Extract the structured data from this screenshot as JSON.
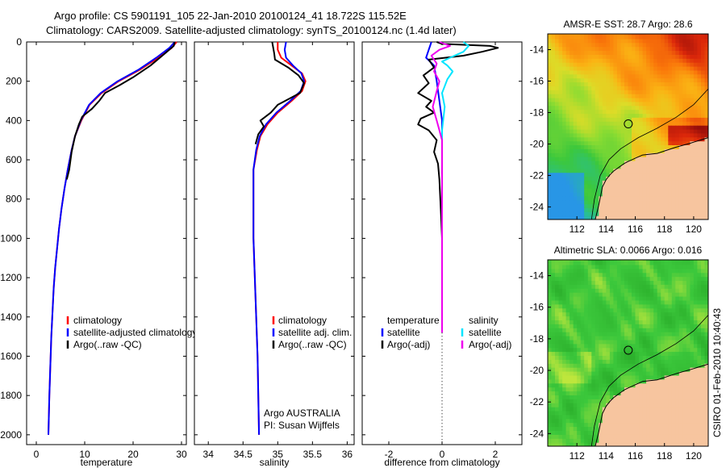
{
  "header": {
    "line1": "Argo profile: CS 5901191_105 22-Jan-2010 20100124_41 18.722S 115.52E",
    "line2": "Climatology: CARS2009. Satellite-adjusted climatology: synTS_20100124.nc (1.4d later)"
  },
  "side_stamp": "CSIRO 01-Feb-2010 10:40:43",
  "colors": {
    "climatology": "#ff0000",
    "satellite": "#0000ff",
    "argo": "#000000",
    "sal_satellite": "#00e5ff",
    "sal_argo": "#ee00ee",
    "land": "#f7c59f"
  },
  "chart_data": [
    {
      "id": "temperature",
      "type": "line",
      "xlabel": "temperature",
      "ylabel": "",
      "xlim": [
        -2,
        31
      ],
      "ylim": [
        2050,
        0
      ],
      "xticks": [
        0,
        10,
        20,
        30
      ],
      "yticks": [
        0,
        200,
        400,
        600,
        800,
        1000,
        1200,
        1400,
        1600,
        1800,
        2000
      ],
      "legend": {
        "placement": "lower-right",
        "entries": [
          {
            "label": "climatology",
            "color": "#ff0000"
          },
          {
            "label": "satellite-adjusted climatology",
            "color": "#0000ff"
          },
          {
            "label": "Argo(..raw -QC)",
            "color": "#000000"
          }
        ]
      },
      "annotations": [],
      "series": [
        {
          "name": "climatology",
          "color": "#ff0000",
          "x": [
            29.0,
            28.0,
            25.2,
            21.5,
            17.0,
            13.5,
            11.0,
            9.3,
            8.0,
            7.3,
            6.5,
            5.8,
            5.2,
            4.7,
            4.3,
            3.9,
            3.6,
            3.4,
            3.1,
            2.9,
            2.7,
            2.6,
            2.5
          ],
          "y": [
            0,
            30,
            80,
            140,
            200,
            260,
            320,
            400,
            480,
            550,
            650,
            750,
            850,
            950,
            1050,
            1150,
            1250,
            1350,
            1500,
            1650,
            1800,
            1900,
            2000
          ]
        },
        {
          "name": "satellite-adjusted climatology",
          "color": "#0000ff",
          "x": [
            28.6,
            27.5,
            24.8,
            21.2,
            16.8,
            13.3,
            10.9,
            9.2,
            8.0,
            7.3,
            6.5,
            5.8,
            5.2,
            4.7,
            4.3,
            3.9,
            3.6,
            3.4,
            3.1,
            2.9,
            2.7,
            2.6,
            2.5
          ],
          "y": [
            0,
            30,
            80,
            140,
            200,
            260,
            320,
            400,
            480,
            550,
            650,
            750,
            850,
            950,
            1050,
            1150,
            1250,
            1350,
            1500,
            1650,
            1800,
            1900,
            2000
          ]
        },
        {
          "name": "Argo(..raw -QC)",
          "color": "#000000",
          "x": [
            28.6,
            28.4,
            26.5,
            23.6,
            20.0,
            17.2,
            14.2,
            13.0,
            11.5,
            9.5,
            8.8,
            8.0,
            7.3,
            6.8,
            6.3
          ],
          "y": [
            0,
            20,
            60,
            120,
            180,
            220,
            260,
            300,
            340,
            380,
            420,
            480,
            560,
            650,
            700
          ]
        }
      ]
    },
    {
      "id": "salinity",
      "type": "line",
      "xlabel": "salinity",
      "ylabel": "",
      "xlim": [
        33.8,
        36.1
      ],
      "ylim": [
        2050,
        0
      ],
      "xticks": [
        34,
        34.5,
        35,
        35.5,
        36
      ],
      "yticks": [],
      "legend": {
        "placement": "lower-right",
        "entries": [
          {
            "label": "climatology",
            "color": "#ff0000"
          },
          {
            "label": "satellite adj. clim.",
            "color": "#0000ff"
          },
          {
            "label": "Argo(..raw -QC)",
            "color": "#000000"
          }
        ]
      },
      "annotations": [
        "Argo AUSTRALIA",
        "PI: Susan Wijffels"
      ],
      "series": [
        {
          "name": "climatology",
          "color": "#ff0000",
          "x": [
            35.0,
            35.0,
            35.05,
            35.2,
            35.35,
            35.4,
            35.35,
            35.2,
            35.0,
            34.85,
            34.75,
            34.7,
            34.65,
            34.65,
            34.65,
            34.67,
            34.69,
            34.71,
            34.72,
            34.73
          ],
          "y": [
            0,
            40,
            80,
            120,
            160,
            200,
            250,
            300,
            360,
            420,
            480,
            550,
            650,
            800,
            1000,
            1200,
            1400,
            1600,
            1800,
            2000
          ]
        },
        {
          "name": "satellite adj. clim.",
          "color": "#0000ff",
          "x": [
            35.12,
            35.1,
            35.12,
            35.22,
            35.34,
            35.38,
            35.33,
            35.18,
            34.98,
            34.83,
            34.74,
            34.69,
            34.65,
            34.65,
            34.65,
            34.67,
            34.69,
            34.71,
            34.72,
            34.73
          ],
          "y": [
            0,
            40,
            80,
            120,
            160,
            200,
            250,
            300,
            360,
            420,
            480,
            550,
            650,
            800,
            1000,
            1200,
            1400,
            1600,
            1800,
            2000
          ]
        },
        {
          "name": "Argo(..raw -QC)",
          "color": "#000000",
          "x": [
            34.92,
            34.93,
            34.95,
            34.96,
            35.15,
            35.3,
            35.38,
            35.32,
            35.0,
            34.9,
            34.75,
            34.8,
            34.72,
            34.68
          ],
          "y": [
            0,
            20,
            60,
            90,
            130,
            170,
            210,
            260,
            320,
            360,
            400,
            430,
            470,
            520
          ]
        }
      ]
    },
    {
      "id": "difference",
      "type": "line",
      "xlabel": "difference from climatology",
      "ylabel": "",
      "xlim": [
        -3,
        3
      ],
      "ylim": [
        2050,
        0
      ],
      "xticks": [
        -2,
        0,
        2
      ],
      "yticks": [],
      "legend": {
        "placement": "lower-center",
        "groups": [
          {
            "title": "temperature",
            "entries": [
              {
                "label": "satellite",
                "color": "#0000ff"
              },
              {
                "label": "Argo(-adj)",
                "color": "#000000"
              }
            ]
          },
          {
            "title": "salinity",
            "entries": [
              {
                "label": "satellite",
                "color": "#00e5ff"
              },
              {
                "label": "Argo(-adj)",
                "color": "#ee00ee"
              }
            ]
          }
        ]
      },
      "series": [
        {
          "name": "temperature satellite",
          "color": "#0000ff",
          "x": [
            -0.4,
            -0.5,
            -0.6,
            -0.3,
            -0.2,
            -0.1,
            0.0,
            0.0,
            0.0,
            0.0
          ],
          "y": [
            0,
            40,
            80,
            120,
            200,
            300,
            400,
            600,
            1000,
            1400
          ]
        },
        {
          "name": "temperature Argo(-adj)",
          "color": "#000000",
          "x": [
            -0.2,
            0.0,
            1.8,
            2.1,
            1.5,
            0.8,
            -0.5,
            -0.3,
            -0.7,
            -0.5,
            -0.9,
            -0.4,
            -0.6,
            -0.3,
            -0.8,
            -0.9,
            -0.5,
            -0.2,
            -0.3,
            -0.15,
            -0.1,
            -0.05,
            0.0
          ],
          "y": [
            0,
            10,
            20,
            30,
            50,
            70,
            90,
            130,
            170,
            210,
            260,
            300,
            330,
            360,
            390,
            420,
            450,
            500,
            560,
            620,
            700,
            850,
            1000
          ]
        },
        {
          "name": "salinity satellite",
          "color": "#00e5ff",
          "x": [
            0.8,
            1.0,
            0.8,
            0.3,
            0.0,
            0.2,
            0.4,
            0.2,
            0.0,
            0.1,
            0.0,
            0.0,
            0.0,
            0.0
          ],
          "y": [
            0,
            20,
            50,
            80,
            100,
            120,
            150,
            190,
            260,
            330,
            450,
            600,
            800,
            1000
          ]
        },
        {
          "name": "salinity Argo(-adj)",
          "color": "#ee00ee",
          "x": [
            -0.1,
            0.3,
            -0.1,
            -0.4,
            -0.2,
            -0.3,
            -0.1,
            -0.2,
            -0.35,
            -0.2,
            -0.1,
            0.0,
            0.0,
            0.0,
            0.0
          ],
          "y": [
            0,
            20,
            40,
            70,
            110,
            150,
            200,
            250,
            330,
            400,
            450,
            500,
            600,
            1000,
            1480
          ]
        }
      ]
    },
    {
      "id": "amsre_sst",
      "type": "heatmap",
      "title": "AMSR-E SST: 28.7 Argo: 28.6",
      "xlim": [
        110,
        121
      ],
      "ylim": [
        -24.8,
        -13
      ],
      "xticks": [
        112,
        114,
        116,
        118,
        120
      ],
      "yticks": [
        -14,
        -16,
        -18,
        -20,
        -22,
        -24
      ],
      "xticklabels": [
        "112",
        "114",
        "116",
        "118",
        "120"
      ],
      "yticklabels": [
        "-14",
        "-16",
        "-18",
        "-20",
        "-22",
        "-24"
      ],
      "argo_position": [
        115.52,
        -18.722
      ]
    },
    {
      "id": "altimetric_sla",
      "type": "heatmap",
      "title": "Altimetric SLA: 0.0066 Argo: 0.016",
      "xlim": [
        110,
        121
      ],
      "ylim": [
        -24.8,
        -13
      ],
      "xticks": [
        112,
        114,
        116,
        118,
        120
      ],
      "yticks": [
        -14,
        -16,
        -18,
        -20,
        -22,
        -24
      ],
      "xticklabels": [
        "112",
        "114",
        "116",
        "118",
        "120"
      ],
      "yticklabels": [
        "-14",
        "-16",
        "-18",
        "-20",
        "-22",
        "-24"
      ],
      "argo_position": [
        115.52,
        -18.722
      ]
    }
  ]
}
